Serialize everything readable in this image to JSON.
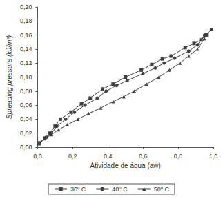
{
  "chart_data": {
    "type": "line",
    "x_label": "Atividade de água (aw)",
    "y_label": "Spreading pressure (kJ/m²)",
    "xlim": [
      0,
      1.0
    ],
    "xticks": [
      {
        "value": 0,
        "label": "0,0"
      },
      {
        "value": 0.2,
        "label": "0,2"
      },
      {
        "value": 0.4,
        "label": "0,4"
      },
      {
        "value": 0.6,
        "label": "0,6"
      },
      {
        "value": 0.8,
        "label": "0,8"
      },
      {
        "value": 1.0,
        "label": "1,0"
      }
    ],
    "ylim": [
      0,
      0.2
    ],
    "yticks": [
      {
        "value": 0,
        "label": "0,00"
      },
      {
        "value": 0.02,
        "label": "0,02"
      },
      {
        "value": 0.04,
        "label": "0,04"
      },
      {
        "value": 0.06,
        "label": "0,06"
      },
      {
        "value": 0.08,
        "label": "0,08"
      },
      {
        "value": 0.1,
        "label": "0,10"
      },
      {
        "value": 0.12,
        "label": "0,12"
      },
      {
        "value": 0.14,
        "label": "0,14"
      },
      {
        "value": 0.16,
        "label": "0,16"
      },
      {
        "value": 0.18,
        "label": "0,18"
      },
      {
        "value": 0.2,
        "label": "0,20"
      }
    ],
    "grid": false,
    "legend": "bottom",
    "series": [
      {
        "name": "30º C",
        "color": "#404040",
        "marker": "square",
        "x": [
          0.01,
          0.04,
          0.07,
          0.1,
          0.13,
          0.19,
          0.25,
          0.3,
          0.37,
          0.43,
          0.5,
          0.59,
          0.65,
          0.71,
          0.76,
          0.84,
          0.89,
          0.93,
          0.96,
          0.99
        ],
        "values": [
          0.006,
          0.013,
          0.02,
          0.03,
          0.04,
          0.05,
          0.062,
          0.07,
          0.083,
          0.09,
          0.1,
          0.11,
          0.118,
          0.126,
          0.13,
          0.142,
          0.148,
          0.153,
          0.16,
          0.168
        ]
      },
      {
        "name": "40º C",
        "color": "#404040",
        "marker": "circle",
        "x": [
          0.01,
          0.05,
          0.08,
          0.11,
          0.16,
          0.21,
          0.27,
          0.34,
          0.39,
          0.45,
          0.51,
          0.6,
          0.67,
          0.72,
          0.78,
          0.86,
          0.91,
          0.95
        ],
        "values": [
          0.006,
          0.014,
          0.02,
          0.03,
          0.04,
          0.05,
          0.06,
          0.07,
          0.08,
          0.088,
          0.095,
          0.105,
          0.113,
          0.12,
          0.127,
          0.137,
          0.146,
          0.16
        ]
      },
      {
        "name": "50º C",
        "color": "#404040",
        "marker": "triangle",
        "x": [
          0.01,
          0.04,
          0.08,
          0.12,
          0.17,
          0.23,
          0.29,
          0.36,
          0.43,
          0.49,
          0.55,
          0.62,
          0.69,
          0.75,
          0.81,
          0.86,
          0.91,
          0.95
        ],
        "values": [
          0.005,
          0.012,
          0.018,
          0.025,
          0.032,
          0.04,
          0.048,
          0.056,
          0.065,
          0.072,
          0.08,
          0.09,
          0.1,
          0.11,
          0.12,
          0.13,
          0.14,
          0.155
        ]
      }
    ]
  }
}
